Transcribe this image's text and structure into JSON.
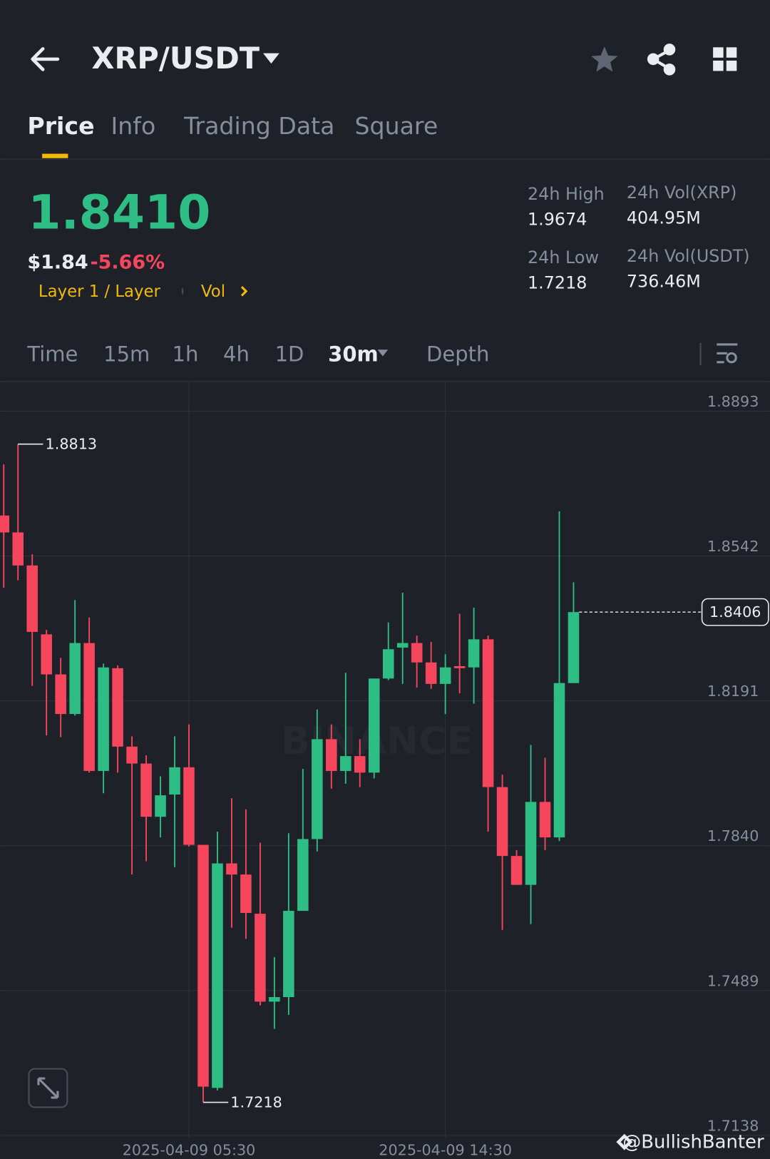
{
  "header": {
    "title": "XRP/USDT"
  },
  "tabs": [
    "Price",
    "Info",
    "Trading Data",
    "Square"
  ],
  "quote": {
    "price": "1.8410",
    "usd": "$1.84",
    "change": "-5.66%",
    "tag": "Layer 1 / Layer",
    "vol": "Vol"
  },
  "stats": [
    {
      "label": "24h High",
      "value": "1.9674"
    },
    {
      "label": "24h Vol(XRP)",
      "value": "404.95M"
    },
    {
      "label": "24h Low",
      "value": "1.7218"
    },
    {
      "label": "24h Vol(USDT)",
      "value": "736.46M"
    }
  ],
  "intervals": [
    "Time",
    "15m",
    "1h",
    "4h",
    "1D",
    "30m",
    "Depth"
  ],
  "watermark": "BINANCE",
  "footer": "@BullishBanter",
  "chart_data": {
    "type": "candlestick",
    "up_color": "#2ebd85",
    "down_color": "#f6465d",
    "categories": [
      null,
      null,
      null,
      null,
      null,
      null,
      null,
      null,
      null,
      null,
      null,
      null,
      null,
      "2025-04-09 05:30",
      null,
      null,
      null,
      null,
      null,
      null,
      null,
      null,
      null,
      null,
      null,
      null,
      null,
      null,
      null,
      null,
      null,
      "2025-04-09 14:30",
      null,
      null,
      null,
      null,
      null,
      null,
      null,
      null,
      null
    ],
    "open": [
      1.864,
      1.8599,
      1.8519,
      1.8352,
      1.8255,
      1.8159,
      1.8331,
      1.8021,
      1.827,
      1.808,
      1.8039,
      1.791,
      1.7964,
      1.803,
      1.7842,
      1.7253,
      1.7797,
      1.777,
      1.7675,
      1.7462,
      1.7473,
      1.7682,
      1.7856,
      1.8098,
      1.8021,
      1.8057,
      1.8017,
      1.8245,
      1.832,
      1.8331,
      1.8284,
      1.8232,
      1.8275,
      1.8272,
      1.834,
      1.7982,
      1.7815,
      1.7745,
      1.7946,
      1.786,
      1.8234
    ],
    "high": [
      1.8764,
      1.8813,
      1.8546,
      1.8363,
      1.8295,
      1.8435,
      1.8393,
      1.8281,
      1.8277,
      1.8105,
      1.8059,
      1.8008,
      1.8105,
      1.8134,
      1.7842,
      1.7874,
      1.7955,
      1.7928,
      1.7847,
      1.757,
      1.787,
      1.8026,
      1.817,
      1.8134,
      1.8259,
      1.8098,
      1.8245,
      1.8381,
      1.8453,
      1.8349,
      1.8334,
      1.8304,
      1.8402,
      1.8417,
      1.8349,
      1.8012,
      1.7829,
      1.8084,
      1.8053,
      1.865,
      1.8478
    ],
    "low": [
      1.8465,
      1.8483,
      1.8227,
      1.8107,
      1.8103,
      1.8155,
      1.8017,
      1.7967,
      1.8017,
      1.777,
      1.7802,
      1.786,
      1.7788,
      1.7838,
      1.7218,
      1.7247,
      1.7641,
      1.7614,
      1.7453,
      1.7396,
      1.743,
      1.7682,
      1.7826,
      1.7978,
      1.799,
      1.7982,
      1.8003,
      1.8241,
      1.8232,
      1.8223,
      1.822,
      1.8159,
      1.8209,
      1.8184,
      1.7874,
      1.7636,
      1.7745,
      1.765,
      1.7829,
      1.7851,
      1.8234
    ],
    "close": [
      1.8599,
      1.8519,
      1.8358,
      1.8255,
      1.8159,
      1.8331,
      1.8021,
      1.8272,
      1.808,
      1.8039,
      1.791,
      1.7962,
      1.803,
      1.7842,
      1.7256,
      1.7797,
      1.777,
      1.7677,
      1.7462,
      1.7473,
      1.7682,
      1.7856,
      1.8098,
      1.8021,
      1.8057,
      1.8017,
      1.8245,
      1.8316,
      1.8331,
      1.8284,
      1.8232,
      1.8272,
      1.827,
      1.834,
      1.7982,
      1.7815,
      1.7745,
      1.7946,
      1.786,
      1.8234,
      1.8406
    ],
    "ylim": [
      1.7138,
      1.8965
    ],
    "yticks": [
      {
        "value": 1.8893,
        "label": "1.8893"
      },
      {
        "value": 1.8542,
        "label": "1.8542"
      },
      {
        "value": 1.8191,
        "label": "1.8191"
      },
      {
        "value": 1.784,
        "label": "1.7840"
      },
      {
        "value": 1.7489,
        "label": "1.7489"
      },
      {
        "value": 1.7138,
        "label": "1.7138"
      }
    ],
    "grid": true,
    "annotations": {
      "high": 1.8813,
      "low": 1.7218,
      "last": 1.8406
    }
  }
}
